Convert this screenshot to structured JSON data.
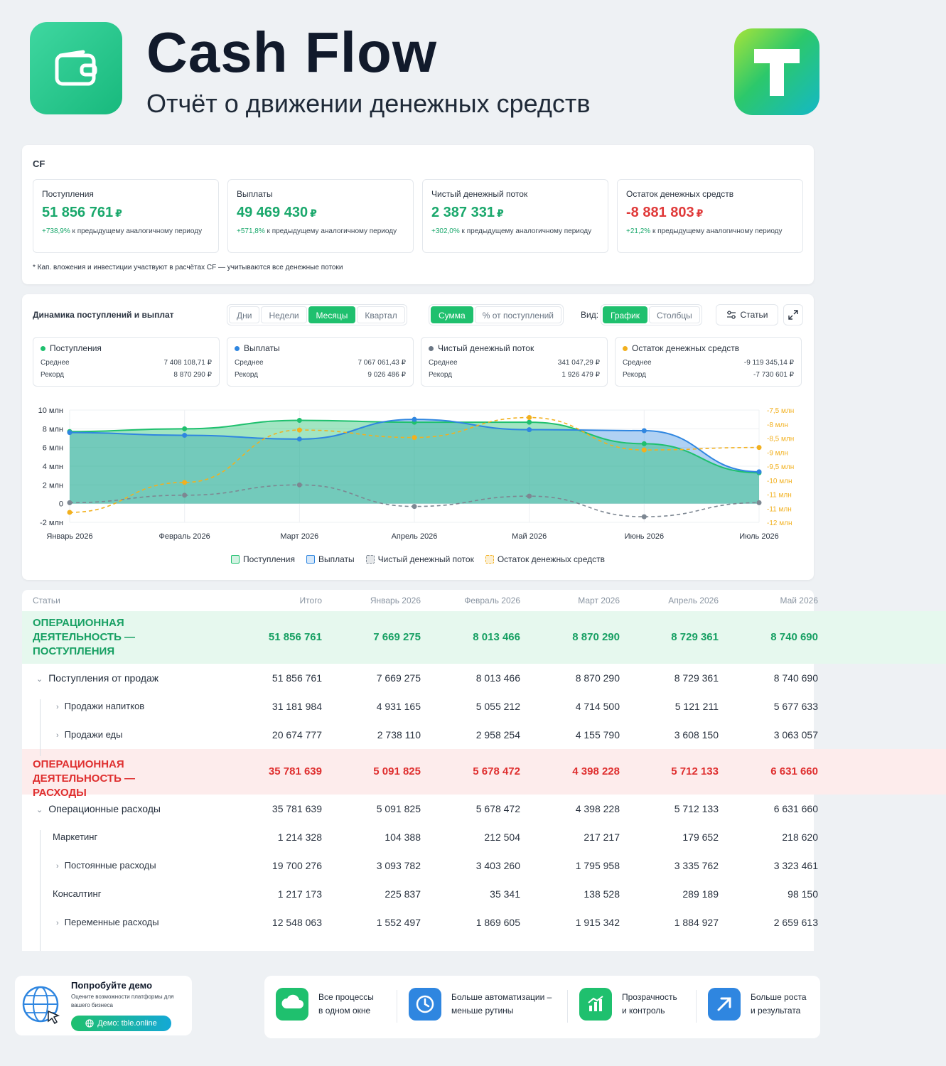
{
  "header": {
    "title": "Cash Flow",
    "subtitle": "Отчёт о движении денежных средств"
  },
  "cf": {
    "label": "CF",
    "kpis": [
      {
        "label": "Поступления",
        "value": "51 856 761",
        "currency": "₽",
        "pct": "+738,9%",
        "note": "к предыдущему аналогичному периоду",
        "negative": false
      },
      {
        "label": "Выплаты",
        "value": "49 469 430",
        "currency": "₽",
        "pct": "+571,8%",
        "note": "к предыдущему аналогичному периоду",
        "negative": false
      },
      {
        "label": "Чистый денежный поток",
        "value": "2 387 331",
        "currency": "₽",
        "pct": "+302,0%",
        "note": "к предыдущему аналогичному периоду",
        "negative": false
      },
      {
        "label": "Остаток денежных средств",
        "value": "-8 881 803",
        "currency": "₽",
        "pct": "+21,2%",
        "note": "к предыдущему аналогичному периоду",
        "negative": true
      }
    ],
    "footnote": "* Кап. вложения и инвестиции участвуют в расчётах CF — учитываются все денежные потоки"
  },
  "dynamics": {
    "title": "Динамика поступлений и выплат",
    "period_buttons": [
      "Дни",
      "Недели",
      "Месяцы",
      "Квартал"
    ],
    "period_active": "Месяцы",
    "mode_buttons": [
      "Сумма",
      "% от поступлений"
    ],
    "mode_active": "Сумма",
    "view_label": "Вид:",
    "view_buttons": [
      "График",
      "Столбцы"
    ],
    "view_active": "График",
    "articles_label": "Статьи",
    "stats": [
      {
        "name": "Поступления",
        "color": "#1fc06e",
        "avg_label": "Среднее",
        "avg": "7 408 108,71 ₽",
        "rec_label": "Рекорд",
        "rec": "8 870 290 ₽"
      },
      {
        "name": "Выплаты",
        "color": "#2f86e0",
        "avg_label": "Среднее",
        "avg": "7 067 061,43 ₽",
        "rec_label": "Рекорд",
        "rec": "9 026 486 ₽"
      },
      {
        "name": "Чистый денежный поток",
        "color": "#6b7785",
        "avg_label": "Среднее",
        "avg": "341 047,29 ₽",
        "rec_label": "Рекорд",
        "rec": "1 926 479 ₽"
      },
      {
        "name": "Остаток денежных средств",
        "color": "#f2b01e",
        "avg_label": "Среднее",
        "avg": "-9 119 345,14 ₽",
        "rec_label": "Рекорд",
        "rec": "-7 730 601 ₽"
      }
    ]
  },
  "chart_data": {
    "type": "area",
    "categories": [
      "Январь 2026",
      "Февраль 2026",
      "Март 2026",
      "Апрель 2026",
      "Май 2026",
      "Июнь 2026",
      "Июль 2026"
    ],
    "y_left_ticks": [
      "10 млн",
      "8 млн",
      "6 млн",
      "4 млн",
      "2 млн",
      "0",
      "-2 млн"
    ],
    "y_left_range": [
      -2,
      10
    ],
    "y_right_ticks": [
      "-7,5 млн",
      "-8 млн",
      "-8,5 млн",
      "-9 млн",
      "-9,5 млн",
      "-10 млн",
      "-11 млн",
      "-11 млн",
      "-12 млн"
    ],
    "y_right_range": [
      -12,
      -7.5
    ],
    "series": [
      {
        "name": "Поступления",
        "axis": "left",
        "color": "#1fc06e",
        "values": [
          7.7,
          8.0,
          8.9,
          8.7,
          8.7,
          6.4,
          3.3
        ]
      },
      {
        "name": "Выплаты",
        "axis": "left",
        "color": "#2f86e0",
        "values": [
          7.6,
          7.3,
          6.9,
          9.0,
          7.9,
          7.8,
          3.4
        ]
      },
      {
        "name": "Чистый денежный поток",
        "axis": "left",
        "color": "#7d8792",
        "values": [
          0.1,
          0.9,
          2.0,
          -0.3,
          0.8,
          -1.4,
          0.1
        ]
      },
      {
        "name": "Остаток денежных средств",
        "axis": "right",
        "color": "#f2b01e",
        "values": [
          -11.6,
          -10.4,
          -8.3,
          -8.6,
          -7.8,
          -9.1,
          -9.0
        ]
      }
    ],
    "legend": [
      "Поступления",
      "Выплаты",
      "Чистый денежный поток",
      "Остаток денежных средств"
    ],
    "legend_position": "bottom",
    "grid": true
  },
  "table": {
    "headers": [
      "Статьи",
      "Итого",
      "Январь 2026",
      "Февраль 2026",
      "Март 2026",
      "Апрель 2026",
      "Май 2026"
    ],
    "rows": [
      {
        "name": "ОПЕРАЦИОННАЯ ДЕЯТЕЛЬНОСТЬ — ПОСТУПЛЕНИЯ",
        "type": "sec-green",
        "values": [
          "51 856 761",
          "7 669 275",
          "8 013 466",
          "8 870 290",
          "8 729 361",
          "8 740 690"
        ]
      },
      {
        "name": "Поступления от продаж",
        "type": "group",
        "values": [
          "51 856 761",
          "7 669 275",
          "8 013 466",
          "8 870 290",
          "8 729 361",
          "8 740 690"
        ]
      },
      {
        "name": "Продажи напитков",
        "type": "child-exp",
        "values": [
          "31 181 984",
          "4 931 165",
          "5 055 212",
          "4 714 500",
          "5 121 211",
          "5 677 633"
        ]
      },
      {
        "name": "Продажи еды",
        "type": "child-exp",
        "values": [
          "20 674 777",
          "2 738 110",
          "2 958 254",
          "4 155 790",
          "3 608 150",
          "3 063 057"
        ]
      },
      {
        "name": "ОПЕРАЦИОННАЯ ДЕЯТЕЛЬНОСТЬ — РАСХОДЫ",
        "type": "sec-red",
        "values": [
          "35 781 639",
          "5 091 825",
          "5 678 472",
          "4 398 228",
          "5 712 133",
          "6 631 660"
        ]
      },
      {
        "name": "Операционные расходы",
        "type": "group",
        "values": [
          "35 781 639",
          "5 091 825",
          "5 678 472",
          "4 398 228",
          "5 712 133",
          "6 631 660"
        ]
      },
      {
        "name": "Маркетинг",
        "type": "child",
        "values": [
          "1 214 328",
          "104 388",
          "212 504",
          "217 217",
          "179 652",
          "218 620"
        ]
      },
      {
        "name": "Постоянные расходы",
        "type": "child-exp",
        "values": [
          "19 700 276",
          "3 093 782",
          "3 403 260",
          "1 795 958",
          "3 335 762",
          "3 323 461"
        ]
      },
      {
        "name": "Консалтинг",
        "type": "child",
        "values": [
          "1 217 173",
          "225 837",
          "35 341",
          "138 528",
          "289 189",
          "98 150"
        ]
      },
      {
        "name": "Переменные расходы",
        "type": "child-exp",
        "values": [
          "12 548 063",
          "1 552 497",
          "1 869 605",
          "1 915 342",
          "1 884 927",
          "2 659 613"
        ]
      }
    ]
  },
  "demo": {
    "title": "Попробуйте демо",
    "desc": "Оцените возможности платформы для вашего бизнеса",
    "button": "Демо: tble.online"
  },
  "features": [
    {
      "line1": "Все процессы",
      "line2": "в одном окне",
      "color": "#1fc06e",
      "icon": "cloud-icon"
    },
    {
      "line1": "Больше автоматизации –",
      "line2": "меньше рутины",
      "color": "#2f86e0",
      "icon": "clock-icon"
    },
    {
      "line1": "Прозрачность",
      "line2": "и контроль",
      "color": "#1fc06e",
      "icon": "bar-chart-icon"
    },
    {
      "line1": "Больше роста",
      "line2": "и результата",
      "color": "#2f86e0",
      "icon": "arrow-up-right-icon"
    }
  ]
}
